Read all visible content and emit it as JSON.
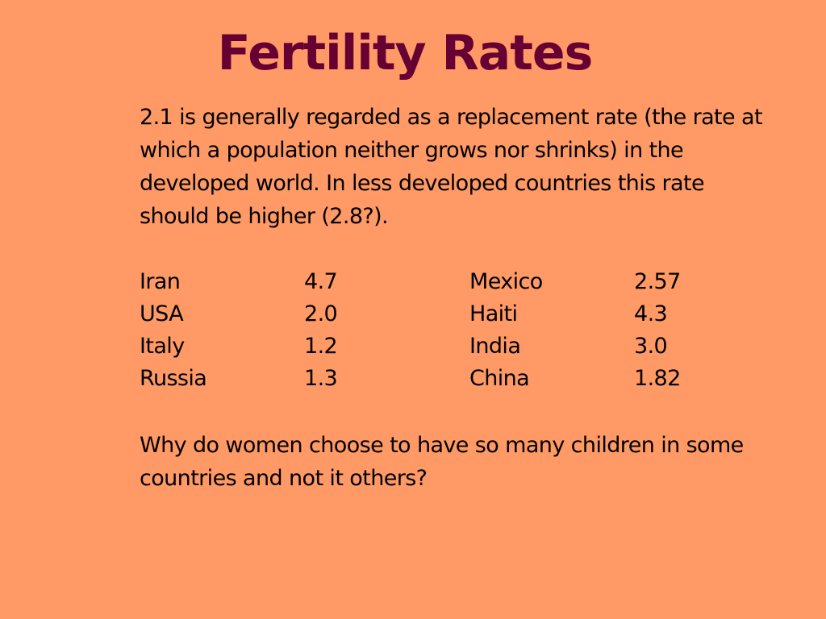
{
  "slide": {
    "title": "Fertility Rates",
    "intro": "2.1 is generally regarded as a replacement rate (the rate at which a population neither grows nor shrinks) in the developed world. In less developed countries this rate should be higher (2.8?).",
    "rates": [
      {
        "country_a": "Iran",
        "rate_a": "4.7",
        "country_b": "Mexico",
        "rate_b": "2.57"
      },
      {
        "country_a": "USA",
        "rate_a": "2.0",
        "country_b": "Haiti",
        "rate_b": "4.3"
      },
      {
        "country_a": "Italy",
        "rate_a": "1.2",
        "country_b": "India",
        "rate_b": "3.0"
      },
      {
        "country_a": "Russia",
        "rate_a": "1.3",
        "country_b": "China",
        "rate_b": "1.82"
      }
    ],
    "question": "Why do women choose to have so many children in some countries and not it others?"
  },
  "colors": {
    "background": "#ff9966",
    "title": "#660033",
    "text": "#000000"
  }
}
